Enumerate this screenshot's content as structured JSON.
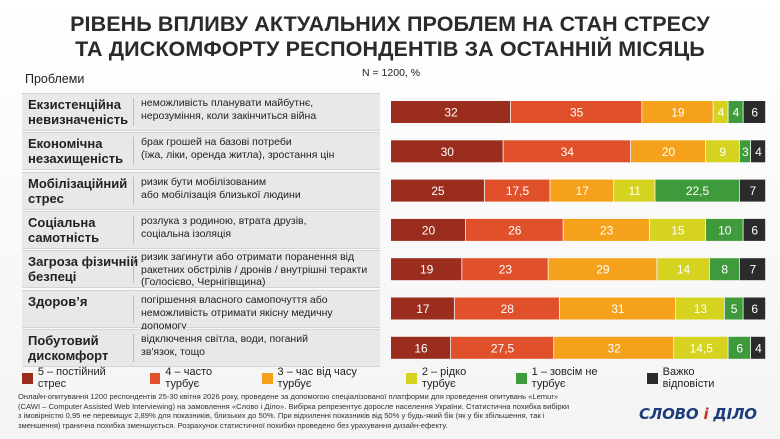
{
  "title_line1": "РІВЕНЬ ВПЛИВУ АКТУАЛЬНИХ ПРОБЛЕМ НА СТАН СТРЕСУ",
  "title_line2": "ТА ДИСКОМФОРТУ РЕСПОНДЕНТІВ ЗА ОСТАННІЙ МІСЯЦЬ",
  "subheading": "Проблеми",
  "sample_label": "N = 1200, %",
  "footnote": "Онлайн-опитування 1200 респондентів 25-30 квітня 2026 року, проведене за допомогою спеціалізованої платформи для проведення опитувань «Lemur» (CAWI – Computer Assisted Web Interviewing) на замовлення «Слово і Діло». Вибірка репрезентує доросле населення України. Статистична похибка вибірки з імовірністю 0,95 не перевищує 2,89% для показників, близьких до 50%. При відхиленні показників від 50% у будь-який бік (як у бік збільшення, так і зменшення) гранична похибка зменшується. Розрахунок статистичної похибки проведено без урахування дизайн-ефекту.",
  "logo": {
    "left": "СЛОВО",
    "amp": "і",
    "right": "ДІЛО"
  },
  "colors": {
    "s5": "#9b2d1e",
    "s4": "#e0502a",
    "s3": "#f5a11c",
    "s2": "#d6d320",
    "s1": "#3f9a3c",
    "s0": "#2b2b2b"
  },
  "chart_data": {
    "type": "bar",
    "orientation": "horizontal",
    "stacked": true,
    "categories": [
      "Екзистенційна невизначеність",
      "Економічна незахищеність",
      "Мобілізаційний стрес",
      "Соціальна самотність",
      "Загроза фізичній безпеці",
      "Здоров’я",
      "Побутовий дискомфорт"
    ],
    "descriptions": [
      [
        "неможливість планувати майбутнє,",
        "нерозуміння, коли закінчиться війна"
      ],
      [
        "брак грошей на базові потреби",
        "(їжа, ліки, оренда житла), зростання цін"
      ],
      [
        "ризик бути мобілізованим",
        "або мобілізація близької людини"
      ],
      [
        "розлука з родиною, втрата друзів,",
        "соціальна ізоляція"
      ],
      [
        "ризик загинути або отримати поранення від",
        "ракетних обстрілів / дронів / внутрішні теракти",
        "(Голосієво, Чернігівщина)"
      ],
      [
        "погіршення власного самопочуття або",
        "неможливість отримати якісну медичну допомогу"
      ],
      [
        "відключення світла, води, поганий",
        "зв'язок, тощо"
      ]
    ],
    "series": [
      {
        "name": "5 – постійний стрес",
        "color": "#9b2d1e",
        "values": [
          32,
          30,
          25,
          20,
          19,
          17,
          16
        ]
      },
      {
        "name": "4 – часто турбує",
        "color": "#e0502a",
        "values": [
          35,
          34,
          17.5,
          26,
          23,
          28,
          27.5
        ]
      },
      {
        "name": "3 – час від часу турбує",
        "color": "#f5a11c",
        "values": [
          19,
          20,
          17,
          23,
          29,
          31,
          32
        ]
      },
      {
        "name": "2 – рідко турбує",
        "color": "#d6d320",
        "values": [
          4,
          9,
          11,
          15,
          14,
          13,
          14.5
        ]
      },
      {
        "name": "1 – зовсім не турбує",
        "color": "#3f9a3c",
        "values": [
          4,
          3,
          22.5,
          10,
          8,
          5,
          6
        ]
      },
      {
        "name": "Важко відповісти",
        "color": "#2b2b2b",
        "values": [
          6,
          4,
          7,
          6,
          7,
          6,
          4
        ]
      }
    ],
    "xlim": [
      0,
      100
    ],
    "legend_position": "bottom"
  }
}
